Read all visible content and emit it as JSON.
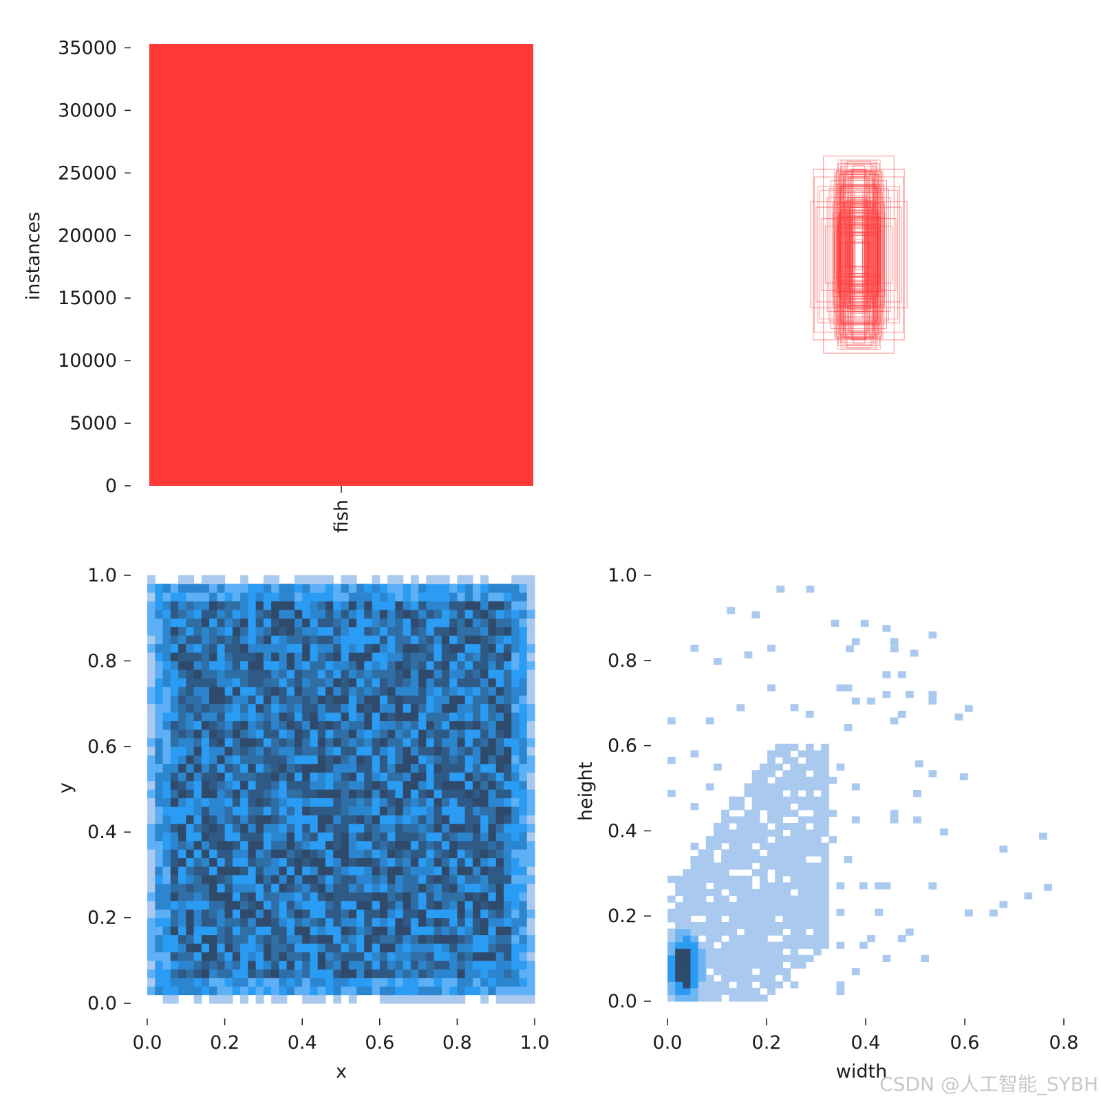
{
  "figure_title": "",
  "watermark": "CSDN @人工智能_SYBH",
  "colors": {
    "bar": "#ff3838",
    "boxes": "#ff3838",
    "heat_light": "#a9c9ef",
    "heat_mid": "#2b9cf3",
    "heat_dark": "#2f4a6b",
    "axis_text": "#1a1a1a"
  },
  "chart_data": [
    {
      "id": "instances-bar",
      "type": "bar",
      "title": "",
      "categories": [
        "fish"
      ],
      "values": [
        35300
      ],
      "xlabel": "",
      "ylabel": "instances",
      "ylim": [
        0,
        35300
      ],
      "yticks": [
        0,
        5000,
        10000,
        15000,
        20000,
        25000,
        30000,
        35000
      ],
      "ytick_labels": [
        "0",
        "5000",
        "10000",
        "15000",
        "20000",
        "25000",
        "30000",
        "35000"
      ],
      "color": "#ff3838",
      "grid": false
    },
    {
      "id": "label-boxes",
      "type": "scatter",
      "description_hint": "overlay of centered bounding box outlines",
      "title": "",
      "boxes": [
        {
          "w": 0.245,
          "h": 0.45
        },
        {
          "w": 0.21,
          "h": 0.34
        },
        {
          "w": 0.19,
          "h": 0.52
        },
        {
          "w": 0.26,
          "h": 0.28
        },
        {
          "w": 0.15,
          "h": 0.39
        },
        {
          "w": 0.12,
          "h": 0.44
        },
        {
          "w": 0.23,
          "h": 0.25
        },
        {
          "w": 0.17,
          "h": 0.3
        },
        {
          "w": 0.1,
          "h": 0.35
        },
        {
          "w": 0.08,
          "h": 0.4
        },
        {
          "w": 0.14,
          "h": 0.22
        },
        {
          "w": 0.2,
          "h": 0.19
        },
        {
          "w": 0.06,
          "h": 0.3
        },
        {
          "w": 0.05,
          "h": 0.25
        },
        {
          "w": 0.11,
          "h": 0.18
        },
        {
          "w": 0.09,
          "h": 0.26
        },
        {
          "w": 0.18,
          "h": 0.15
        },
        {
          "w": 0.07,
          "h": 0.2
        },
        {
          "w": 0.04,
          "h": 0.16
        },
        {
          "w": 0.13,
          "h": 0.12
        },
        {
          "w": 0.03,
          "h": 0.12
        },
        {
          "w": 0.02,
          "h": 0.08
        },
        {
          "w": 0.05,
          "h": 0.1
        },
        {
          "w": 0.16,
          "h": 0.35
        },
        {
          "w": 0.22,
          "h": 0.36
        },
        {
          "w": 0.11,
          "h": 0.48
        },
        {
          "w": 0.24,
          "h": 0.41
        },
        {
          "w": 0.13,
          "h": 0.3
        },
        {
          "w": 0.08,
          "h": 0.33
        },
        {
          "w": 0.06,
          "h": 0.14
        }
      ],
      "color": "#ff3838"
    },
    {
      "id": "xy-heatmap",
      "type": "heatmap",
      "title": "",
      "xlabel": "x",
      "ylabel": "y",
      "xlim": [
        0,
        1
      ],
      "ylim": [
        0,
        1
      ],
      "xticks": [
        "0.0",
        "0.2",
        "0.4",
        "0.6",
        "0.8",
        "1.0"
      ],
      "yticks": [
        "0.0",
        "0.2",
        "0.4",
        "0.6",
        "0.8",
        "1.0"
      ],
      "grid": false,
      "distribution": "approximately uniform over [0,1]x[0,1], lighter along edges"
    },
    {
      "id": "wh-heatmap",
      "type": "heatmap",
      "title": "",
      "xlabel": "width",
      "ylabel": "height",
      "xlim": [
        0,
        0.8
      ],
      "ylim": [
        0,
        1
      ],
      "xticks": [
        "0.0",
        "0.2",
        "0.4",
        "0.6",
        "0.8"
      ],
      "yticks": [
        "0.0",
        "0.2",
        "0.4",
        "0.6",
        "0.8",
        "1.0"
      ],
      "grid": false,
      "distribution": "concentrated near width 0.02-0.1, height 0.03-0.2, sparse tail to width 0.77 and height 0.98"
    }
  ]
}
